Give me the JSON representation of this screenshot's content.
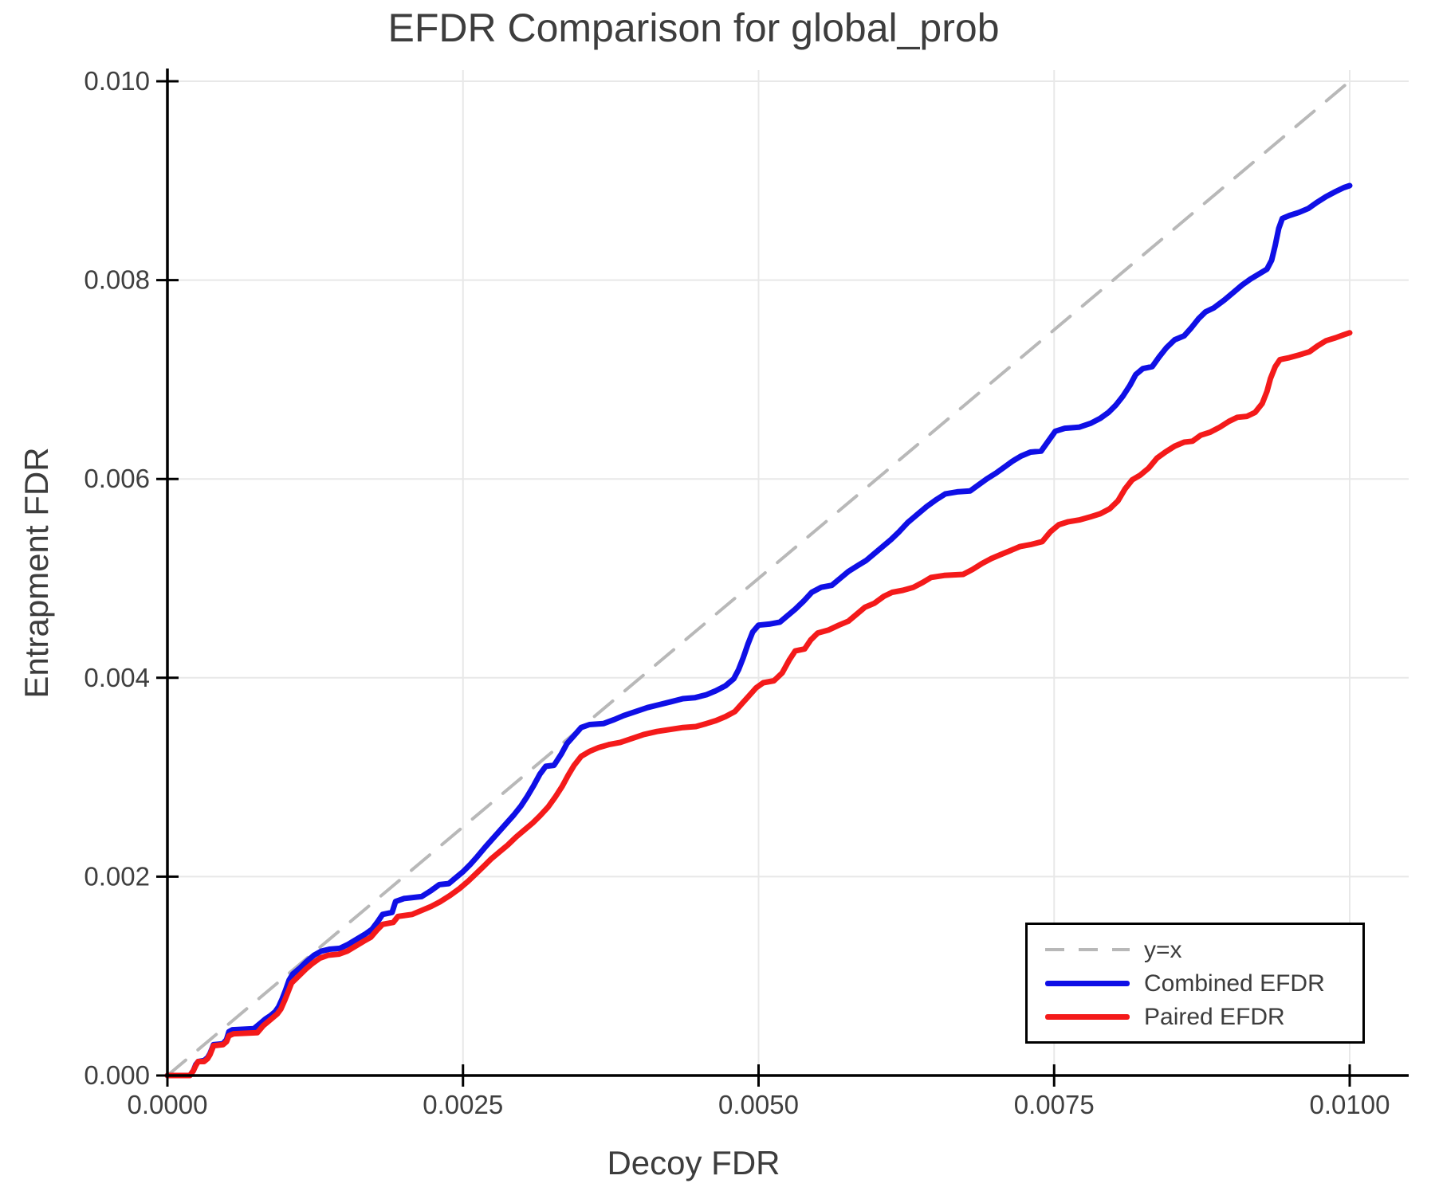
{
  "title": "EFDR Comparison for global_prob",
  "colors": {
    "background": "#ffffff",
    "text": "#3d3d3d",
    "tick_text": "#3f3f3f",
    "spine": "#000000",
    "gridline": "#e8e8e8",
    "diagonal": "#b8b8b8",
    "combined": "#0f0fe6",
    "paired": "#f41a1a"
  },
  "chart_data": {
    "type": "line",
    "title": "EFDR Comparison for global_prob",
    "xlabel": "Decoy FDR",
    "ylabel": "Entrapment FDR",
    "xlim": [
      0,
      0.0105
    ],
    "ylim": [
      0,
      0.0101
    ],
    "grid": true,
    "legend_position": "lower right",
    "value_scale": 0.0001,
    "x_ticks": [
      {
        "v": 0,
        "label": "0.0000"
      },
      {
        "v": 25,
        "label": "0.0025"
      },
      {
        "v": 50,
        "label": "0.0050"
      },
      {
        "v": 75,
        "label": "0.0075"
      },
      {
        "v": 100,
        "label": "0.0100"
      }
    ],
    "y_ticks": [
      {
        "v": 0,
        "label": "0.000"
      },
      {
        "v": 20,
        "label": "0.002"
      },
      {
        "v": 40,
        "label": "0.004"
      },
      {
        "v": 60,
        "label": "0.006"
      },
      {
        "v": 80,
        "label": "0.008"
      },
      {
        "v": 100,
        "label": "0.010"
      }
    ],
    "legend": {
      "items": [
        {
          "label": "y=x",
          "color": "#b8b8b8",
          "dashed": true
        },
        {
          "label": "Combined EFDR",
          "color": "#0f0fe6",
          "dashed": false
        },
        {
          "label": "Paired EFDR",
          "color": "#f41a1a",
          "dashed": false
        }
      ]
    },
    "series": [
      {
        "name": "y=x",
        "slug": "y-equals-x",
        "color": "#b8b8b8",
        "dashed": true,
        "width": 4,
        "points": [
          [
            0,
            0
          ],
          [
            100,
            100
          ]
        ]
      },
      {
        "name": "Combined EFDR",
        "slug": "combined-efdr",
        "color": "#0f0fe6",
        "dashed": false,
        "width": 7,
        "points": [
          [
            0,
            0
          ],
          [
            1.9,
            0
          ],
          [
            2.2,
            0.5
          ],
          [
            2.4,
            1.1
          ],
          [
            2.6,
            1.4
          ],
          [
            3.1,
            1.5
          ],
          [
            3.4,
            1.8
          ],
          [
            3.6,
            2.2
          ],
          [
            3.8,
            2.8
          ],
          [
            3.9,
            3.1
          ],
          [
            4.7,
            3.2
          ],
          [
            5.0,
            3.6
          ],
          [
            5.2,
            4.4
          ],
          [
            5.5,
            4.6
          ],
          [
            7.3,
            4.7
          ],
          [
            7.9,
            5.3
          ],
          [
            8.3,
            5.7
          ],
          [
            8.7,
            6.0
          ],
          [
            9.1,
            6.4
          ],
          [
            9.4,
            6.9
          ],
          [
            9.7,
            7.7
          ],
          [
            10.0,
            8.6
          ],
          [
            10.3,
            9.6
          ],
          [
            10.6,
            10.2
          ],
          [
            11.2,
            10.8
          ],
          [
            11.8,
            11.5
          ],
          [
            12.4,
            12.1
          ],
          [
            13.0,
            12.5
          ],
          [
            13.7,
            12.7
          ],
          [
            14.6,
            12.8
          ],
          [
            15.3,
            13.2
          ],
          [
            16.0,
            13.7
          ],
          [
            16.7,
            14.2
          ],
          [
            17.3,
            14.7
          ],
          [
            17.8,
            15.5
          ],
          [
            18.2,
            16.2
          ],
          [
            19.0,
            16.4
          ],
          [
            19.3,
            17.5
          ],
          [
            20.0,
            17.8
          ],
          [
            21.5,
            18.0
          ],
          [
            22.3,
            18.6
          ],
          [
            23.0,
            19.2
          ],
          [
            23.8,
            19.3
          ],
          [
            24.4,
            19.9
          ],
          [
            25.0,
            20.5
          ],
          [
            25.6,
            21.2
          ],
          [
            26.2,
            22.0
          ],
          [
            26.9,
            23.0
          ],
          [
            27.5,
            23.8
          ],
          [
            28.1,
            24.6
          ],
          [
            28.7,
            25.4
          ],
          [
            29.3,
            26.2
          ],
          [
            29.9,
            27.1
          ],
          [
            30.4,
            28.0
          ],
          [
            31.0,
            29.2
          ],
          [
            31.5,
            30.3
          ],
          [
            32.0,
            31.1
          ],
          [
            32.7,
            31.2
          ],
          [
            33.3,
            32.3
          ],
          [
            33.8,
            33.4
          ],
          [
            34.4,
            34.2
          ],
          [
            35.0,
            35.0
          ],
          [
            35.7,
            35.3
          ],
          [
            36.9,
            35.4
          ],
          [
            37.8,
            35.8
          ],
          [
            38.6,
            36.2
          ],
          [
            39.6,
            36.6
          ],
          [
            40.6,
            37.0
          ],
          [
            41.6,
            37.3
          ],
          [
            42.6,
            37.6
          ],
          [
            43.6,
            37.9
          ],
          [
            44.6,
            38.0
          ],
          [
            45.6,
            38.3
          ],
          [
            46.4,
            38.7
          ],
          [
            47.2,
            39.2
          ],
          [
            47.9,
            39.9
          ],
          [
            48.3,
            40.8
          ],
          [
            48.7,
            42.0
          ],
          [
            49.1,
            43.4
          ],
          [
            49.5,
            44.6
          ],
          [
            50.0,
            45.3
          ],
          [
            50.9,
            45.4
          ],
          [
            51.8,
            45.6
          ],
          [
            52.4,
            46.2
          ],
          [
            53.1,
            46.9
          ],
          [
            53.8,
            47.7
          ],
          [
            54.5,
            48.6
          ],
          [
            55.3,
            49.1
          ],
          [
            56.2,
            49.3
          ],
          [
            56.9,
            50.0
          ],
          [
            57.6,
            50.7
          ],
          [
            58.4,
            51.3
          ],
          [
            59.1,
            51.8
          ],
          [
            59.8,
            52.5
          ],
          [
            60.5,
            53.2
          ],
          [
            61.2,
            53.9
          ],
          [
            61.9,
            54.7
          ],
          [
            62.6,
            55.6
          ],
          [
            63.4,
            56.4
          ],
          [
            64.2,
            57.2
          ],
          [
            65.0,
            57.9
          ],
          [
            65.8,
            58.5
          ],
          [
            66.8,
            58.7
          ],
          [
            67.9,
            58.8
          ],
          [
            68.6,
            59.4
          ],
          [
            69.3,
            60.0
          ],
          [
            70.1,
            60.6
          ],
          [
            70.8,
            61.2
          ],
          [
            71.5,
            61.8
          ],
          [
            72.2,
            62.3
          ],
          [
            73.0,
            62.7
          ],
          [
            73.9,
            62.8
          ],
          [
            74.5,
            63.8
          ],
          [
            75.1,
            64.8
          ],
          [
            75.9,
            65.1
          ],
          [
            77.1,
            65.2
          ],
          [
            78.1,
            65.6
          ],
          [
            78.9,
            66.1
          ],
          [
            79.6,
            66.7
          ],
          [
            80.2,
            67.4
          ],
          [
            80.8,
            68.3
          ],
          [
            81.4,
            69.4
          ],
          [
            81.9,
            70.5
          ],
          [
            82.5,
            71.1
          ],
          [
            83.3,
            71.3
          ],
          [
            83.9,
            72.3
          ],
          [
            84.5,
            73.2
          ],
          [
            85.2,
            74.0
          ],
          [
            86.0,
            74.4
          ],
          [
            86.6,
            75.2
          ],
          [
            87.2,
            76.1
          ],
          [
            87.8,
            76.8
          ],
          [
            88.5,
            77.2
          ],
          [
            89.4,
            78.0
          ],
          [
            90.2,
            78.8
          ],
          [
            90.9,
            79.5
          ],
          [
            91.6,
            80.1
          ],
          [
            92.3,
            80.6
          ],
          [
            93.0,
            81.1
          ],
          [
            93.4,
            82.0
          ],
          [
            93.7,
            83.5
          ],
          [
            94.0,
            85.2
          ],
          [
            94.3,
            86.2
          ],
          [
            94.9,
            86.5
          ],
          [
            95.7,
            86.8
          ],
          [
            96.5,
            87.2
          ],
          [
            97.2,
            87.8
          ],
          [
            98.0,
            88.4
          ],
          [
            98.8,
            88.9
          ],
          [
            99.5,
            89.3
          ],
          [
            100,
            89.5
          ]
        ]
      },
      {
        "name": "Paired EFDR",
        "slug": "paired-efdr",
        "color": "#f41a1a",
        "dashed": false,
        "width": 7,
        "points": [
          [
            0,
            0
          ],
          [
            1.9,
            0
          ],
          [
            2.2,
            0.5
          ],
          [
            2.4,
            1.0
          ],
          [
            2.6,
            1.4
          ],
          [
            3.1,
            1.4
          ],
          [
            3.4,
            1.7
          ],
          [
            3.6,
            2.1
          ],
          [
            3.8,
            2.7
          ],
          [
            3.9,
            3.0
          ],
          [
            4.7,
            3.1
          ],
          [
            5.0,
            3.4
          ],
          [
            5.2,
            4.0
          ],
          [
            5.6,
            4.2
          ],
          [
            7.6,
            4.3
          ],
          [
            8.1,
            5.0
          ],
          [
            8.5,
            5.4
          ],
          [
            8.9,
            5.8
          ],
          [
            9.3,
            6.2
          ],
          [
            9.6,
            6.7
          ],
          [
            9.9,
            7.5
          ],
          [
            10.2,
            8.4
          ],
          [
            10.5,
            9.3
          ],
          [
            11.1,
            10.0
          ],
          [
            11.7,
            10.7
          ],
          [
            12.3,
            11.3
          ],
          [
            12.9,
            11.8
          ],
          [
            13.6,
            12.1
          ],
          [
            14.5,
            12.2
          ],
          [
            15.2,
            12.5
          ],
          [
            15.9,
            13.0
          ],
          [
            16.6,
            13.5
          ],
          [
            17.2,
            13.9
          ],
          [
            17.7,
            14.6
          ],
          [
            18.2,
            15.2
          ],
          [
            19.1,
            15.4
          ],
          [
            19.5,
            16.0
          ],
          [
            20.7,
            16.2
          ],
          [
            21.5,
            16.6
          ],
          [
            22.3,
            17.0
          ],
          [
            23.1,
            17.5
          ],
          [
            23.9,
            18.1
          ],
          [
            24.7,
            18.8
          ],
          [
            25.4,
            19.5
          ],
          [
            26.1,
            20.3
          ],
          [
            26.8,
            21.1
          ],
          [
            27.4,
            21.8
          ],
          [
            28.1,
            22.5
          ],
          [
            28.8,
            23.2
          ],
          [
            29.5,
            24.0
          ],
          [
            30.2,
            24.7
          ],
          [
            30.9,
            25.4
          ],
          [
            31.5,
            26.1
          ],
          [
            32.2,
            27.0
          ],
          [
            32.8,
            28.0
          ],
          [
            33.4,
            29.1
          ],
          [
            33.9,
            30.2
          ],
          [
            34.4,
            31.2
          ],
          [
            35.0,
            32.1
          ],
          [
            35.7,
            32.6
          ],
          [
            36.5,
            33.0
          ],
          [
            37.4,
            33.3
          ],
          [
            38.3,
            33.5
          ],
          [
            39.3,
            33.9
          ],
          [
            40.3,
            34.3
          ],
          [
            41.4,
            34.6
          ],
          [
            42.5,
            34.8
          ],
          [
            43.6,
            35.0
          ],
          [
            44.7,
            35.1
          ],
          [
            45.6,
            35.4
          ],
          [
            46.4,
            35.7
          ],
          [
            47.2,
            36.1
          ],
          [
            48.0,
            36.6
          ],
          [
            48.6,
            37.4
          ],
          [
            49.2,
            38.2
          ],
          [
            49.8,
            39.0
          ],
          [
            50.4,
            39.5
          ],
          [
            51.3,
            39.7
          ],
          [
            52.0,
            40.5
          ],
          [
            52.6,
            41.8
          ],
          [
            53.1,
            42.7
          ],
          [
            53.9,
            42.9
          ],
          [
            54.4,
            43.8
          ],
          [
            55.0,
            44.5
          ],
          [
            55.9,
            44.8
          ],
          [
            56.8,
            45.3
          ],
          [
            57.6,
            45.7
          ],
          [
            58.3,
            46.4
          ],
          [
            59.0,
            47.1
          ],
          [
            59.8,
            47.5
          ],
          [
            60.6,
            48.2
          ],
          [
            61.3,
            48.6
          ],
          [
            62.2,
            48.8
          ],
          [
            63.1,
            49.1
          ],
          [
            63.9,
            49.6
          ],
          [
            64.6,
            50.1
          ],
          [
            65.7,
            50.3
          ],
          [
            67.3,
            50.4
          ],
          [
            68.1,
            50.9
          ],
          [
            68.9,
            51.5
          ],
          [
            69.7,
            52.0
          ],
          [
            70.5,
            52.4
          ],
          [
            71.3,
            52.8
          ],
          [
            72.1,
            53.2
          ],
          [
            73.0,
            53.4
          ],
          [
            74.0,
            53.7
          ],
          [
            74.7,
            54.7
          ],
          [
            75.4,
            55.4
          ],
          [
            76.2,
            55.7
          ],
          [
            77.2,
            55.9
          ],
          [
            78.1,
            56.2
          ],
          [
            78.9,
            56.5
          ],
          [
            79.7,
            57.0
          ],
          [
            80.4,
            57.8
          ],
          [
            81.0,
            59.0
          ],
          [
            81.6,
            59.9
          ],
          [
            82.3,
            60.4
          ],
          [
            83.0,
            61.1
          ],
          [
            83.7,
            62.1
          ],
          [
            84.4,
            62.7
          ],
          [
            85.2,
            63.3
          ],
          [
            86.0,
            63.7
          ],
          [
            86.7,
            63.8
          ],
          [
            87.4,
            64.4
          ],
          [
            88.2,
            64.7
          ],
          [
            89.0,
            65.2
          ],
          [
            89.8,
            65.8
          ],
          [
            90.5,
            66.2
          ],
          [
            91.3,
            66.3
          ],
          [
            92.0,
            66.7
          ],
          [
            92.6,
            67.6
          ],
          [
            93.0,
            68.8
          ],
          [
            93.3,
            70.1
          ],
          [
            93.7,
            71.3
          ],
          [
            94.1,
            72.0
          ],
          [
            94.9,
            72.2
          ],
          [
            95.8,
            72.5
          ],
          [
            96.6,
            72.8
          ],
          [
            97.3,
            73.4
          ],
          [
            98.0,
            73.9
          ],
          [
            98.8,
            74.2
          ],
          [
            99.5,
            74.5
          ],
          [
            100,
            74.7
          ]
        ]
      }
    ]
  }
}
